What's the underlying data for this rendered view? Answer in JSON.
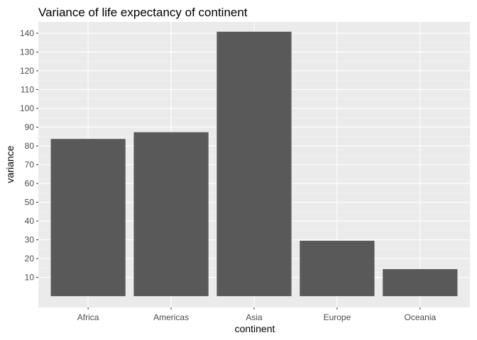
{
  "chart_data": {
    "type": "bar",
    "title": "Variance of life expectancy of continent",
    "xlabel": "continent",
    "ylabel": "variance",
    "categories": [
      "Africa",
      "Americas",
      "Asia",
      "Europe",
      "Oceania"
    ],
    "values": [
      83.7,
      87.3,
      140.8,
      29.5,
      14.4
    ],
    "ylim": [
      -6,
      146
    ],
    "yticks": [
      10,
      20,
      30,
      40,
      50,
      60,
      70,
      80,
      90,
      100,
      110,
      120,
      130,
      140
    ],
    "grid": true,
    "legend": "none",
    "colors": {
      "bar": "#595959",
      "panel": "#ebebeb",
      "grid": "#ffffff"
    }
  }
}
